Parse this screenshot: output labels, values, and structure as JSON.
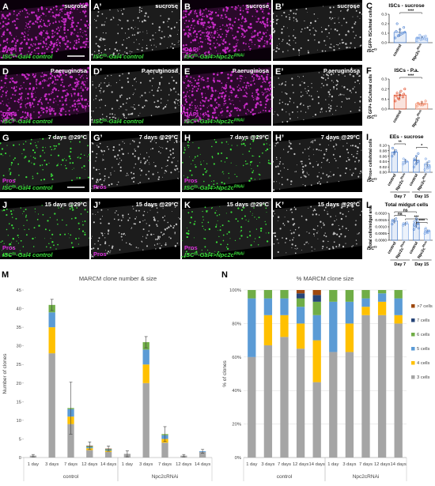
{
  "panels": [
    {
      "letter": "A",
      "channel": "magenta",
      "caption": "sucrose",
      "stain": "DAPI",
      "scalebar": true,
      "genotype": [
        {
          "t": "ISC"
        },
        {
          "t": "ts",
          "sup": true
        },
        {
          "t": "-Gal4 control"
        }
      ]
    },
    {
      "letter": "A’",
      "channel": "gray",
      "caption": "sucrose",
      "genotype": [
        {
          "t": "ISC"
        },
        {
          "t": "ts",
          "sup": true
        },
        {
          "t": "-Gal4 control"
        }
      ]
    },
    {
      "letter": "B",
      "channel": "magenta",
      "caption": "sucrose",
      "stain": "DAPI",
      "genotype": [
        {
          "t": "ISC"
        },
        {
          "t": "ts",
          "sup": true
        },
        {
          "t": "-Gal4>Npc2c"
        },
        {
          "t": "RNAi",
          "sup": true
        }
      ]
    },
    {
      "letter": "B’",
      "channel": "gray",
      "caption": "sucrose"
    },
    {
      "letter": "D",
      "channel": "magenta",
      "caption": "P.aeruginosa",
      "stain": "DAPI",
      "genotype": [
        {
          "t": "ISC"
        },
        {
          "t": "ts",
          "sup": true
        },
        {
          "t": "-Gal4 control"
        }
      ]
    },
    {
      "letter": "D’",
      "channel": "gray",
      "caption": "P.aeruginosa",
      "genotype": [
        {
          "t": "ISC"
        },
        {
          "t": "ts",
          "sup": true
        },
        {
          "t": "-Gal4 control"
        }
      ]
    },
    {
      "letter": "E",
      "channel": "magenta",
      "caption": "P.aeruginosa",
      "stain": "DAPI",
      "genotype": [
        {
          "t": "ISC"
        },
        {
          "t": "ts",
          "sup": true
        },
        {
          "t": "-Gal4>Npc2c"
        },
        {
          "t": "RNAi",
          "sup": true
        }
      ]
    },
    {
      "letter": "E’",
      "channel": "gray",
      "caption": "P.aeruginosa"
    },
    {
      "letter": "G",
      "channel": "green",
      "caption": "7 days @29ºC",
      "stain": "Pros",
      "scalebar": true,
      "genotype": [
        {
          "t": "ISC"
        },
        {
          "t": "ts",
          "sup": true
        },
        {
          "t": "-Gal4 control"
        }
      ]
    },
    {
      "letter": "G’",
      "channel": "gray",
      "caption": "7 days @29ºC",
      "stain": "Pros"
    },
    {
      "letter": "H",
      "channel": "green",
      "caption": "7 days @29ºC",
      "stain": "Pros",
      "genotype": [
        {
          "t": "ISC"
        },
        {
          "t": "ts",
          "sup": true
        },
        {
          "t": "-Gal4>Npc2c"
        },
        {
          "t": "RNAi",
          "sup": true
        }
      ]
    },
    {
      "letter": "H’",
      "channel": "gray",
      "caption": "7 days @29ºC"
    },
    {
      "letter": "J",
      "channel": "green",
      "caption": "15 days @29ºC",
      "stain": "Pros",
      "genotype": [
        {
          "t": "ISC"
        },
        {
          "t": "ts",
          "sup": true
        },
        {
          "t": "-Gal4 control"
        }
      ]
    },
    {
      "letter": "J’",
      "channel": "gray",
      "caption": "15 days @29ºC",
      "stain": "Pros"
    },
    {
      "letter": "K",
      "channel": "green",
      "caption": "15 days @29ºC",
      "stain": "Pros",
      "genotype": [
        {
          "t": "ISC"
        },
        {
          "t": "ts",
          "sup": true
        },
        {
          "t": "-Gal4>Npc2c"
        },
        {
          "t": "RNAi",
          "sup": true
        }
      ]
    },
    {
      "letter": "K’",
      "channel": "gray",
      "caption": "15 days @29ºC"
    }
  ],
  "chart_data": [
    {
      "type": "dot",
      "letter": "C",
      "title": "ISCs - sucrose",
      "ylabel": "GFP+ ISCs/total cells",
      "genotype": [
        {
          "t": "ISC"
        },
        {
          "t": "ts",
          "sup": true
        }
      ],
      "ylim": [
        0,
        0.3
      ],
      "yticks": [
        {
          "value": 0,
          "label": "0.0"
        },
        0.1,
        0.2,
        0.3
      ],
      "groups": [
        {
          "name": [
            {
              "t": "control"
            }
          ],
          "color": "#4a7fd0",
          "mean": 0.11,
          "sd": 0.045,
          "points": [
            0.05,
            0.08,
            0.1,
            0.12,
            0.14,
            0.16,
            0.2,
            0.09,
            0.11,
            0.07
          ]
        },
        {
          "name": [
            {
              "t": "Npc2c"
            },
            {
              "t": "RNAi",
              "sup": true
            }
          ],
          "color": "#7fa8e6",
          "mean": 0.05,
          "sd": 0.02,
          "points": [
            0.02,
            0.03,
            0.04,
            0.05,
            0.06,
            0.07,
            0.05,
            0.04,
            0.03,
            0.08,
            0.06,
            0.05
          ]
        }
      ],
      "significance": [
        {
          "from": 0,
          "to": 1,
          "label": "****"
        }
      ]
    },
    {
      "type": "dot",
      "letter": "F",
      "title": "ISCs - P.a.",
      "ylabel": "GFP+ ISCs/total cells",
      "genotype": [
        {
          "t": "ISC"
        },
        {
          "t": "ts",
          "sup": true
        }
      ],
      "ylim": [
        0,
        0.3
      ],
      "yticks": [
        {
          "value": 0,
          "label": "0.0"
        },
        0.1,
        0.2,
        0.3
      ],
      "groups": [
        {
          "name": [
            {
              "t": "control"
            }
          ],
          "color": "#e0401a",
          "mean": 0.14,
          "sd": 0.04,
          "points": [
            0.08,
            0.1,
            0.12,
            0.13,
            0.14,
            0.15,
            0.16,
            0.18,
            0.2,
            0.11
          ]
        },
        {
          "name": [
            {
              "t": "Npc2c"
            },
            {
              "t": "RNAi",
              "sup": true
            }
          ],
          "color": "#f07f5a",
          "mean": 0.055,
          "sd": 0.02,
          "points": [
            0.03,
            0.04,
            0.05,
            0.06,
            0.07,
            0.08,
            0.05,
            0.04
          ]
        }
      ],
      "significance": [
        {
          "from": 0,
          "to": 1,
          "label": "****"
        }
      ]
    },
    {
      "type": "dot",
      "letter": "I",
      "title": "EEs - sucrose",
      "ylabel": "Pros+ cells/total cells",
      "genotype": [
        {
          "t": "ISC"
        },
        {
          "t": "ts",
          "sup": true
        }
      ],
      "ylim": [
        0,
        0.1
      ],
      "yticks": [
        {
          "value": 0,
          "label": "0.00"
        },
        0.02,
        0.04,
        0.06,
        0.08,
        {
          "value": 0.1,
          "label": "0.10"
        }
      ],
      "groups": [
        {
          "name": [
            {
              "t": "control"
            }
          ],
          "color": "#4a7fd0",
          "mean": 0.075,
          "sd": 0.012,
          "points": [
            0.06,
            0.07,
            0.08,
            0.09,
            0.075
          ]
        },
        {
          "name": [
            {
              "t": "Npc2c"
            },
            {
              "t": "RNAi",
              "sup": true
            }
          ],
          "color": "#7fa8e6",
          "mean": 0.04,
          "sd": 0.01,
          "points": [
            0.03,
            0.035,
            0.04,
            0.05,
            0.045
          ]
        },
        {
          "name": [
            {
              "t": "control"
            }
          ],
          "color": "#4a7fd0",
          "mean": 0.045,
          "sd": 0.015,
          "points": [
            0.02,
            0.03,
            0.04,
            0.05,
            0.06,
            0.07,
            0.045,
            0.035
          ]
        },
        {
          "name": [
            {
              "t": "Npc2c"
            },
            {
              "t": "RNAi",
              "sup": true
            }
          ],
          "color": "#7fa8e6",
          "mean": 0.028,
          "sd": 0.012,
          "points": [
            0.01,
            0.02,
            0.025,
            0.03,
            0.035,
            0.04,
            0.05,
            0.015,
            0.02
          ]
        }
      ],
      "days": [
        "Day 7",
        "Day 15"
      ],
      "significance": [
        {
          "from": 0,
          "to": 1,
          "label": "**"
        },
        {
          "from": 2,
          "to": 3,
          "label": "*"
        }
      ]
    },
    {
      "type": "dot",
      "letter": "L",
      "title": "Total midgut cells",
      "ylabel": "Total cells/midgut area",
      "genotype": [
        {
          "t": "ISC"
        },
        {
          "t": "ts",
          "sup": true
        }
      ],
      "ylim": [
        0,
        0.002
      ],
      "yticks": [
        {
          "value": 0,
          "label": "0.0000"
        },
        0.0005,
        {
          "value": 0.001,
          "label": "0.0010"
        },
        0.0015,
        {
          "value": 0.002,
          "label": "0.0020"
        }
      ],
      "groups": [
        {
          "name": [
            {
              "t": "control"
            }
          ],
          "color": "#4a7fd0",
          "mean": 0.00145,
          "sd": 0.0002,
          "points": [
            0.0012,
            0.0014,
            0.0016,
            0.0015
          ]
        },
        {
          "name": [
            {
              "t": "Npc2c"
            },
            {
              "t": "RNAi",
              "sup": true
            }
          ],
          "color": "#7fa8e6",
          "mean": 0.00122,
          "sd": 0.00015,
          "points": [
            0.0011,
            0.0012,
            0.0013,
            0.00125
          ]
        },
        {
          "name": [
            {
              "t": "control"
            }
          ],
          "color": "#4a7fd0",
          "mean": 0.00125,
          "sd": 0.0003,
          "points": [
            0.0008,
            0.001,
            0.0012,
            0.0014,
            0.0016,
            0.0013,
            0.0011,
            0.0015,
            0.0009
          ]
        },
        {
          "name": [
            {
              "t": "Npc2c"
            },
            {
              "t": "RNAi",
              "sup": true
            }
          ],
          "color": "#7fa8e6",
          "mean": 0.00068,
          "sd": 0.00012,
          "points": [
            0.0005,
            0.0006,
            0.0007,
            0.0008,
            0.00065,
            0.0007,
            0.0009,
            0.00055
          ]
        }
      ],
      "days": [
        "Day 7",
        "Day 15"
      ],
      "significance": [
        {
          "from": 0,
          "to": 2,
          "label": "ns"
        },
        {
          "from": 0,
          "to": 1,
          "label": "ns"
        },
        {
          "from": 1,
          "to": 3,
          "label": "***"
        },
        {
          "from": 2,
          "to": 3,
          "label": "****"
        }
      ]
    },
    {
      "type": "stacked_bar",
      "letter": "M",
      "title": "MARCM clone number & size",
      "ylabel": "Number of clones",
      "grid": false,
      "categories": [
        "1 day",
        "3 days",
        "7 days",
        "12 days",
        "14 days",
        "1 day",
        "3 days",
        "7 days",
        "12 days",
        "14 days"
      ],
      "groups": [
        "control",
        "Npc2cRNAi"
      ],
      "ylim": [
        0,
        45
      ],
      "yticks": [
        0,
        5,
        10,
        15,
        20,
        25,
        30,
        35,
        40,
        45
      ],
      "series": [
        {
          "name": "3 cells",
          "color": "#a5a5a5",
          "values": [
            0.5,
            28,
            9,
            2,
            1.5,
            1,
            20,
            4,
            0.5,
            1.5
          ]
        },
        {
          "name": "4 cells",
          "color": "#ffc000",
          "values": [
            0,
            7,
            2,
            0.5,
            0.3,
            0,
            5,
            1,
            0,
            0
          ]
        },
        {
          "name": "5 cells",
          "color": "#5b9bd5",
          "values": [
            0,
            4,
            2,
            0.3,
            0.2,
            0,
            4,
            1,
            0,
            0.2
          ]
        },
        {
          "name": "6 cells",
          "color": "#70ad47",
          "values": [
            0,
            2,
            0.3,
            0.2,
            0.2,
            0,
            2,
            0.3,
            0,
            0
          ]
        },
        {
          "name": "7 cells",
          "color": "#264478",
          "values": [
            0,
            0,
            0,
            0.1,
            0.1,
            0,
            0,
            0,
            0,
            0
          ]
        },
        {
          "name": ">7 cells",
          "color": "#9e480e",
          "values": [
            0,
            0,
            0,
            0.1,
            0.1,
            0,
            0,
            0,
            0,
            0
          ]
        }
      ],
      "errors": [
        0.3,
        1.5,
        7,
        1,
        0.7,
        0.8,
        1.5,
        2,
        0.3,
        0.5
      ]
    },
    {
      "type": "stacked_bar",
      "letter": "N",
      "title": "% MARCM clone size",
      "ylabel": "% of clones",
      "grid": true,
      "legend": "right",
      "categories": [
        "1 day",
        "3 days",
        "7 days",
        "12 days",
        "14 days",
        "1 day",
        "3 days",
        "7 days",
        "12 days",
        "14 days"
      ],
      "groups": [
        "control",
        "Npc2cRNAi"
      ],
      "ylim": [
        0,
        100
      ],
      "yticks": [
        {
          "value": 0,
          "label": "0%"
        },
        {
          "value": 20,
          "label": "20%"
        },
        {
          "value": 40,
          "label": "40%"
        },
        {
          "value": 60,
          "label": "60%"
        },
        {
          "value": 80,
          "label": "80%"
        },
        {
          "value": 100,
          "label": "100%"
        }
      ],
      "series": [
        {
          "name": "3 cells",
          "color": "#a5a5a5",
          "values": [
            60,
            67,
            72,
            65,
            45,
            63,
            63,
            85,
            85,
            80
          ]
        },
        {
          "name": "4 cells",
          "color": "#ffc000",
          "values": [
            0,
            18,
            13,
            15,
            25,
            0,
            17,
            5,
            8,
            5
          ]
        },
        {
          "name": "5 cells",
          "color": "#5b9bd5",
          "values": [
            35,
            10,
            10,
            10,
            15,
            30,
            13,
            5,
            5,
            10
          ]
        },
        {
          "name": "6 cells",
          "color": "#70ad47",
          "values": [
            5,
            5,
            5,
            5,
            8,
            7,
            7,
            5,
            2,
            5
          ]
        },
        {
          "name": "7 cells",
          "color": "#264478",
          "values": [
            0,
            0,
            0,
            3,
            4,
            0,
            0,
            0,
            0,
            0
          ]
        },
        {
          "name": ">7 cells",
          "color": "#9e480e",
          "values": [
            0,
            0,
            0,
            2,
            3,
            0,
            0,
            0,
            0,
            0
          ]
        }
      ]
    }
  ]
}
